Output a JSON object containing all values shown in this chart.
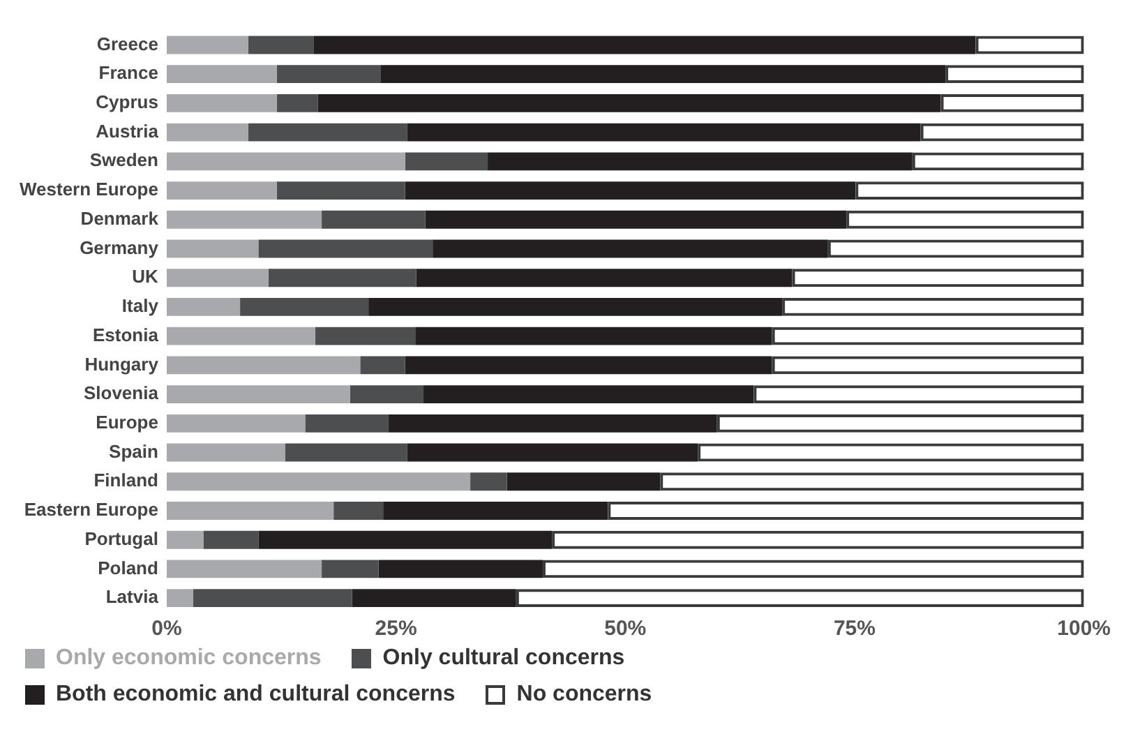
{
  "chart_data": {
    "type": "bar",
    "orientation": "horizontal",
    "stacked": true,
    "categories": [
      "Greece",
      "France",
      "Cyprus",
      "Austria",
      "Sweden",
      "Western Europe",
      "Denmark",
      "Germany",
      "UK",
      "Italy",
      "Estonia",
      "Hungary",
      "Slovenia",
      "Europe",
      "Spain",
      "Finland",
      "Eastern Europe",
      "Portugal",
      "Poland",
      "Latvia"
    ],
    "series": [
      {
        "name": "Only economic concerns",
        "color": "#a7a9ac",
        "values": [
          8.9,
          12.0,
          12.0,
          8.9,
          26.0,
          12.0,
          16.9,
          10.0,
          11.1,
          8.0,
          16.2,
          21.1,
          20.0,
          15.1,
          12.9,
          33.1,
          18.2,
          4.0,
          16.9,
          2.9
        ]
      },
      {
        "name": "Only cultural concerns",
        "color": "#4d4e50",
        "values": [
          7.1,
          11.3,
          4.5,
          17.3,
          9.0,
          14.0,
          11.3,
          19.0,
          16.1,
          14.0,
          10.9,
          4.9,
          8.0,
          9.1,
          13.3,
          4.0,
          5.4,
          6.0,
          6.2,
          17.3
        ]
      },
      {
        "name": "Both economic and cultural concerns",
        "color": "#231f20",
        "values": [
          72.2,
          61.6,
          67.9,
          56.0,
          46.3,
          49.1,
          45.9,
          43.1,
          41.0,
          45.1,
          38.9,
          40.0,
          36.0,
          35.8,
          31.7,
          16.7,
          24.5,
          32.0,
          17.9,
          17.9
        ]
      },
      {
        "name": "No concerns",
        "color": "#3a3a3a",
        "values": [
          11.8,
          15.1,
          15.6,
          17.8,
          18.7,
          24.9,
          25.9,
          27.9,
          31.8,
          32.9,
          34.0,
          34.0,
          36.0,
          40.0,
          42.1,
          46.2,
          51.9,
          58.0,
          59.0,
          61.9
        ]
      }
    ],
    "xlim": [
      0,
      100
    ],
    "xticks": [
      {
        "value": 0,
        "label": "0%"
      },
      {
        "value": 25,
        "label": "25%"
      },
      {
        "value": 50,
        "label": "50%"
      },
      {
        "value": 75,
        "label": "75%"
      },
      {
        "value": 100,
        "label": "100%"
      }
    ],
    "grid": false,
    "legend": "bottom"
  }
}
